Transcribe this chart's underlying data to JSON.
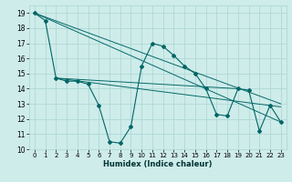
{
  "xlabel": "Humidex (Indice chaleur)",
  "xlim": [
    -0.5,
    23.5
  ],
  "ylim": [
    10,
    19.5
  ],
  "yticks": [
    10,
    11,
    12,
    13,
    14,
    15,
    16,
    17,
    18,
    19
  ],
  "xticks": [
    0,
    1,
    2,
    3,
    4,
    5,
    6,
    7,
    8,
    9,
    10,
    11,
    12,
    13,
    14,
    15,
    16,
    17,
    18,
    19,
    20,
    21,
    22,
    23
  ],
  "bg_color": "#ceecea",
  "grid_color": "#b0d8d5",
  "line_color": "#006666",
  "series_main": {
    "x": [
      0,
      1,
      2,
      3,
      4,
      5,
      6,
      7,
      8,
      9,
      10,
      11,
      12,
      13,
      14,
      15,
      16,
      17,
      18,
      19,
      20,
      21,
      22,
      23
    ],
    "y": [
      19.0,
      18.5,
      14.7,
      14.5,
      14.5,
      14.3,
      12.9,
      10.5,
      10.4,
      11.5,
      15.5,
      17.0,
      16.8,
      16.2,
      15.5,
      15.0,
      14.0,
      12.3,
      12.2,
      14.0,
      13.9,
      11.2,
      12.9,
      11.8
    ]
  },
  "trend_lines": [
    {
      "x": [
        0,
        23
      ],
      "y": [
        19.0,
        11.8
      ]
    },
    {
      "x": [
        0,
        23
      ],
      "y": [
        19.0,
        13.0
      ]
    },
    {
      "x": [
        2,
        23
      ],
      "y": [
        14.7,
        12.8
      ]
    },
    {
      "x": [
        2,
        19
      ],
      "y": [
        14.7,
        14.0
      ]
    }
  ],
  "xlabel_fontsize": 6,
  "tick_fontsize": 5,
  "ytick_fontsize": 5.5,
  "linewidth": 0.8,
  "markersize": 2.0,
  "marker": "D"
}
